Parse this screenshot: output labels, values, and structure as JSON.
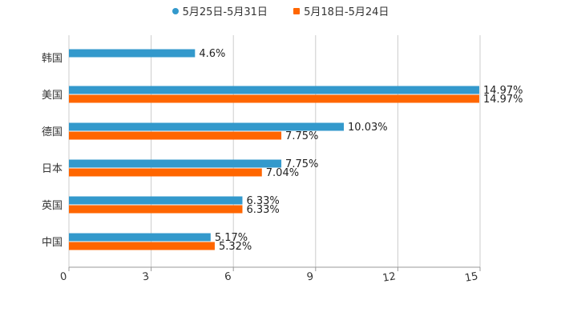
{
  "chart_data": {
    "type": "bar",
    "orientation": "horizontal",
    "categories": [
      "韩国",
      "美国",
      "德国",
      "日本",
      "英国",
      "中国"
    ],
    "series": [
      {
        "name": "5月25日-5月31日",
        "color": "#3399cc",
        "marker": "circle",
        "values": [
          4.6,
          14.97,
          10.03,
          7.75,
          6.33,
          5.17
        ],
        "labels": [
          "4.6%",
          "14.97%",
          "10.03%",
          "7.75%",
          "6.33%",
          "5.17%"
        ]
      },
      {
        "name": "5月18日-5月24日",
        "color": "#ff6600",
        "marker": "square",
        "values": [
          null,
          14.97,
          7.75,
          7.04,
          6.33,
          5.32
        ],
        "labels": [
          null,
          "14.97%",
          "7.75%",
          "7.04%",
          "6.33%",
          "5.32%"
        ]
      }
    ],
    "x_ticks": [
      0,
      3,
      6,
      9,
      12,
      15
    ],
    "x_tick_labels": [
      "0",
      "3",
      "6",
      "9",
      "12",
      "15"
    ],
    "xlim": [
      0,
      15
    ],
    "grid": true,
    "legend": "top-center"
  }
}
